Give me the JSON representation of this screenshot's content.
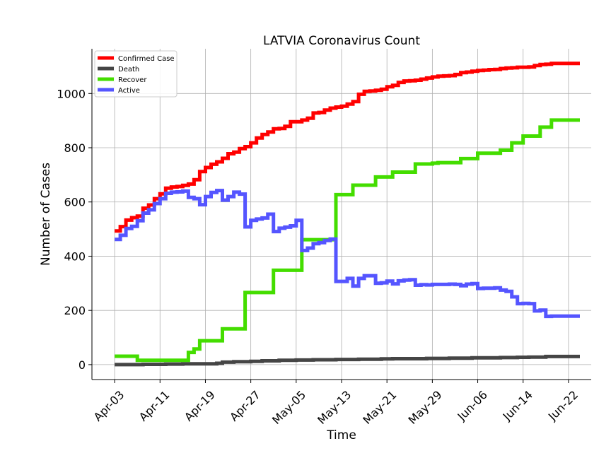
{
  "chart_data": {
    "type": "line",
    "title": "LATVIA Coronavirus Count",
    "xlabel": "Time",
    "ylabel": "Number of Cases",
    "x_tick_labels": [
      "Apr-03",
      "Apr-11",
      "Apr-19",
      "Apr-27",
      "May-05",
      "May-13",
      "May-21",
      "May-29",
      "Jun-06",
      "Jun-14",
      "Jun-22"
    ],
    "y_ticks": [
      0,
      200,
      400,
      600,
      800,
      1000
    ],
    "xlim": [
      "2020-03-30",
      "2020-06-26"
    ],
    "ylim": [
      -55,
      1165
    ],
    "grid": true,
    "legend_position": "top-left",
    "series": [
      {
        "name": "Confirmed Case",
        "color": "#ff0000",
        "points": [
          [
            "2020-04-03",
            493
          ],
          [
            "2020-04-04",
            509
          ],
          [
            "2020-04-05",
            533
          ],
          [
            "2020-04-06",
            542
          ],
          [
            "2020-04-07",
            548
          ],
          [
            "2020-04-08",
            577
          ],
          [
            "2020-04-09",
            589
          ],
          [
            "2020-04-10",
            612
          ],
          [
            "2020-04-11",
            630
          ],
          [
            "2020-04-12",
            651
          ],
          [
            "2020-04-13",
            655
          ],
          [
            "2020-04-14",
            657
          ],
          [
            "2020-04-15",
            661
          ],
          [
            "2020-04-16",
            666
          ],
          [
            "2020-04-17",
            682
          ],
          [
            "2020-04-18",
            712
          ],
          [
            "2020-04-19",
            727
          ],
          [
            "2020-04-20",
            739
          ],
          [
            "2020-04-21",
            748
          ],
          [
            "2020-04-22",
            761
          ],
          [
            "2020-04-23",
            778
          ],
          [
            "2020-04-24",
            784
          ],
          [
            "2020-04-25",
            797
          ],
          [
            "2020-04-26",
            804
          ],
          [
            "2020-04-27",
            818
          ],
          [
            "2020-04-28",
            836
          ],
          [
            "2020-04-29",
            849
          ],
          [
            "2020-04-30",
            858
          ],
          [
            "2020-05-01",
            870
          ],
          [
            "2020-05-02",
            871
          ],
          [
            "2020-05-03",
            879
          ],
          [
            "2020-05-04",
            896
          ],
          [
            "2020-05-05",
            896
          ],
          [
            "2020-05-06",
            902
          ],
          [
            "2020-05-07",
            909
          ],
          [
            "2020-05-08",
            928
          ],
          [
            "2020-05-09",
            930
          ],
          [
            "2020-05-10",
            939
          ],
          [
            "2020-05-11",
            946
          ],
          [
            "2020-05-12",
            950
          ],
          [
            "2020-05-13",
            953
          ],
          [
            "2020-05-14",
            961
          ],
          [
            "2020-05-15",
            970
          ],
          [
            "2020-05-16",
            997
          ],
          [
            "2020-05-17",
            1008
          ],
          [
            "2020-05-18",
            1009
          ],
          [
            "2020-05-19",
            1012
          ],
          [
            "2020-05-20",
            1016
          ],
          [
            "2020-05-21",
            1025
          ],
          [
            "2020-05-22",
            1030
          ],
          [
            "2020-05-23",
            1041
          ],
          [
            "2020-05-24",
            1046
          ],
          [
            "2020-05-25",
            1047
          ],
          [
            "2020-05-26",
            1049
          ],
          [
            "2020-05-27",
            1053
          ],
          [
            "2020-05-28",
            1057
          ],
          [
            "2020-05-29",
            1061
          ],
          [
            "2020-05-30",
            1064
          ],
          [
            "2020-05-31",
            1065
          ],
          [
            "2020-06-01",
            1066
          ],
          [
            "2020-06-02",
            1070
          ],
          [
            "2020-06-03",
            1077
          ],
          [
            "2020-06-04",
            1079
          ],
          [
            "2020-06-05",
            1082
          ],
          [
            "2020-06-06",
            1085
          ],
          [
            "2020-06-07",
            1086
          ],
          [
            "2020-06-08",
            1088
          ],
          [
            "2020-06-09",
            1089
          ],
          [
            "2020-06-10",
            1092
          ],
          [
            "2020-06-11",
            1094
          ],
          [
            "2020-06-12",
            1095
          ],
          [
            "2020-06-13",
            1097
          ],
          [
            "2020-06-14",
            1097
          ],
          [
            "2020-06-15",
            1098
          ],
          [
            "2020-06-16",
            1103
          ],
          [
            "2020-06-17",
            1107
          ],
          [
            "2020-06-18",
            1108
          ],
          [
            "2020-06-19",
            1111
          ],
          [
            "2020-06-20",
            1111
          ],
          [
            "2020-06-21",
            1111
          ],
          [
            "2020-06-22",
            1111
          ],
          [
            "2020-06-23",
            1111
          ],
          [
            "2020-06-24",
            1111
          ]
        ]
      },
      {
        "name": "Death",
        "color": "#454545",
        "points": [
          [
            "2020-04-03",
            0
          ],
          [
            "2020-04-08",
            1
          ],
          [
            "2020-04-12",
            2
          ],
          [
            "2020-04-15",
            3
          ],
          [
            "2020-04-18",
            3
          ],
          [
            "2020-04-21",
            5
          ],
          [
            "2020-04-22",
            9
          ],
          [
            "2020-04-24",
            11
          ],
          [
            "2020-04-27",
            12
          ],
          [
            "2020-04-29",
            14
          ],
          [
            "2020-05-02",
            16
          ],
          [
            "2020-05-05",
            17
          ],
          [
            "2020-05-08",
            18
          ],
          [
            "2020-05-12",
            19
          ],
          [
            "2020-05-16",
            20
          ],
          [
            "2020-05-20",
            21
          ],
          [
            "2020-05-22",
            22
          ],
          [
            "2020-05-28",
            23
          ],
          [
            "2020-06-01",
            24
          ],
          [
            "2020-06-05",
            25
          ],
          [
            "2020-06-10",
            26
          ],
          [
            "2020-06-13",
            27
          ],
          [
            "2020-06-15",
            28
          ],
          [
            "2020-06-18",
            30
          ],
          [
            "2020-06-24",
            30
          ]
        ]
      },
      {
        "name": "Recover",
        "color": "#44dd00",
        "points": [
          [
            "2020-04-03",
            31
          ],
          [
            "2020-04-07",
            16
          ],
          [
            "2020-04-15",
            16
          ],
          [
            "2020-04-16",
            45
          ],
          [
            "2020-04-17",
            58
          ],
          [
            "2020-04-18",
            88
          ],
          [
            "2020-04-22",
            132
          ],
          [
            "2020-04-25",
            132
          ],
          [
            "2020-04-26",
            266
          ],
          [
            "2020-04-30",
            266
          ],
          [
            "2020-05-01",
            348
          ],
          [
            "2020-05-05",
            348
          ],
          [
            "2020-05-06",
            461
          ],
          [
            "2020-05-10",
            461
          ],
          [
            "2020-05-12",
            627
          ],
          [
            "2020-05-15",
            662
          ],
          [
            "2020-05-19",
            692
          ],
          [
            "2020-05-22",
            710
          ],
          [
            "2020-05-26",
            740
          ],
          [
            "2020-05-29",
            743
          ],
          [
            "2020-05-30",
            745
          ],
          [
            "2020-06-03",
            760
          ],
          [
            "2020-06-06",
            780
          ],
          [
            "2020-06-10",
            791
          ],
          [
            "2020-06-12",
            818
          ],
          [
            "2020-06-14",
            843
          ],
          [
            "2020-06-17",
            876
          ],
          [
            "2020-06-19",
            902
          ],
          [
            "2020-06-24",
            902
          ]
        ]
      },
      {
        "name": "Active",
        "color": "#5555ff",
        "points": [
          [
            "2020-04-03",
            462
          ],
          [
            "2020-04-04",
            477
          ],
          [
            "2020-04-05",
            502
          ],
          [
            "2020-04-06",
            510
          ],
          [
            "2020-04-07",
            531
          ],
          [
            "2020-04-08",
            559
          ],
          [
            "2020-04-09",
            571
          ],
          [
            "2020-04-10",
            594
          ],
          [
            "2020-04-11",
            612
          ],
          [
            "2020-04-12",
            632
          ],
          [
            "2020-04-13",
            636
          ],
          [
            "2020-04-14",
            637
          ],
          [
            "2020-04-15",
            640
          ],
          [
            "2020-04-16",
            617
          ],
          [
            "2020-04-17",
            612
          ],
          [
            "2020-04-18",
            590
          ],
          [
            "2020-04-19",
            620
          ],
          [
            "2020-04-20",
            635
          ],
          [
            "2020-04-21",
            642
          ],
          [
            "2020-04-22",
            607
          ],
          [
            "2020-04-23",
            620
          ],
          [
            "2020-04-24",
            636
          ],
          [
            "2020-04-25",
            629
          ],
          [
            "2020-04-26",
            508
          ],
          [
            "2020-04-27",
            532
          ],
          [
            "2020-04-28",
            537
          ],
          [
            "2020-04-29",
            541
          ],
          [
            "2020-04-30",
            555
          ],
          [
            "2020-05-01",
            491
          ],
          [
            "2020-05-02",
            503
          ],
          [
            "2020-05-03",
            507
          ],
          [
            "2020-05-04",
            512
          ],
          [
            "2020-05-05",
            532
          ],
          [
            "2020-05-06",
            421
          ],
          [
            "2020-05-07",
            430
          ],
          [
            "2020-05-08",
            446
          ],
          [
            "2020-05-09",
            450
          ],
          [
            "2020-05-10",
            458
          ],
          [
            "2020-05-11",
            463
          ],
          [
            "2020-05-12",
            307
          ],
          [
            "2020-05-13",
            307
          ],
          [
            "2020-05-14",
            318
          ],
          [
            "2020-05-15",
            290
          ],
          [
            "2020-05-16",
            318
          ],
          [
            "2020-05-17",
            328
          ],
          [
            "2020-05-18",
            328
          ],
          [
            "2020-05-19",
            300
          ],
          [
            "2020-05-20",
            302
          ],
          [
            "2020-05-21",
            308
          ],
          [
            "2020-05-22",
            298
          ],
          [
            "2020-05-23",
            309
          ],
          [
            "2020-05-24",
            312
          ],
          [
            "2020-05-25",
            313
          ],
          [
            "2020-05-26",
            293
          ],
          [
            "2020-05-27",
            295
          ],
          [
            "2020-05-28",
            294
          ],
          [
            "2020-05-29",
            296
          ],
          [
            "2020-05-30",
            296
          ],
          [
            "2020-05-31",
            296
          ],
          [
            "2020-06-01",
            297
          ],
          [
            "2020-06-02",
            296
          ],
          [
            "2020-06-03",
            291
          ],
          [
            "2020-06-04",
            297
          ],
          [
            "2020-06-05",
            299
          ],
          [
            "2020-06-06",
            281
          ],
          [
            "2020-06-07",
            282
          ],
          [
            "2020-06-08",
            282
          ],
          [
            "2020-06-09",
            283
          ],
          [
            "2020-06-10",
            275
          ],
          [
            "2020-06-11",
            270
          ],
          [
            "2020-06-12",
            250
          ],
          [
            "2020-06-13",
            225
          ],
          [
            "2020-06-14",
            226
          ],
          [
            "2020-06-15",
            225
          ],
          [
            "2020-06-16",
            198
          ],
          [
            "2020-06-17",
            201
          ],
          [
            "2020-06-18",
            178
          ],
          [
            "2020-06-19",
            179
          ],
          [
            "2020-06-20",
            179
          ],
          [
            "2020-06-21",
            179
          ],
          [
            "2020-06-22",
            179
          ],
          [
            "2020-06-23",
            179
          ],
          [
            "2020-06-24",
            179
          ]
        ]
      }
    ]
  }
}
